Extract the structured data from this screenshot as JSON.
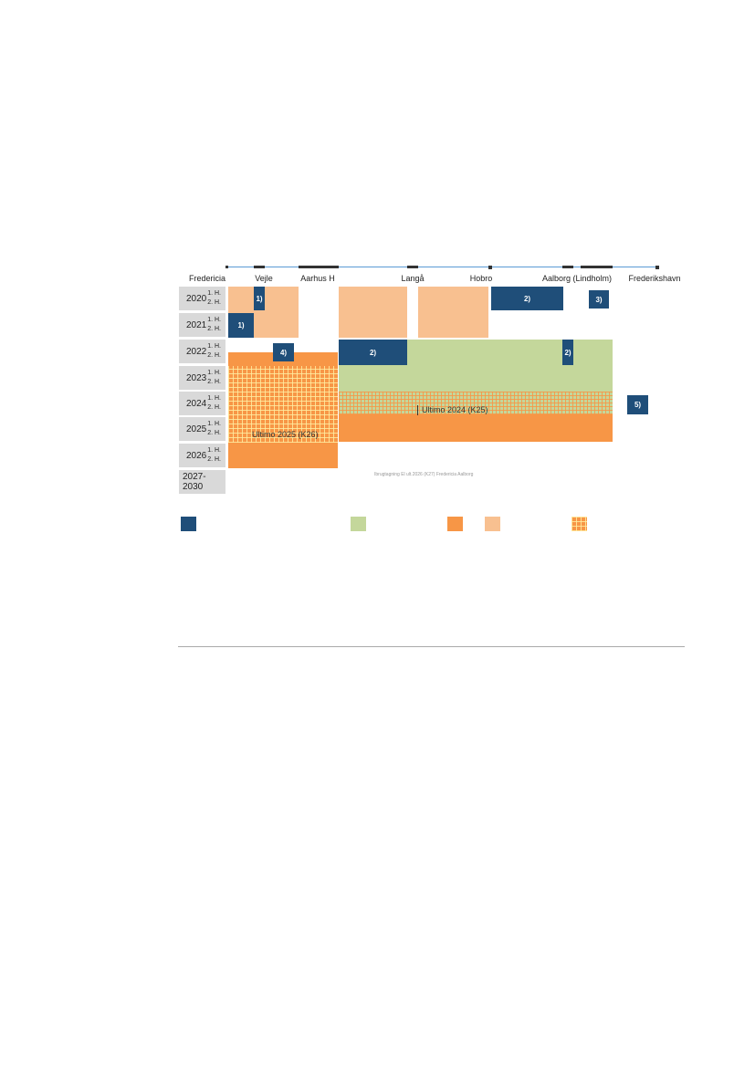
{
  "stations": [
    "Fredericia",
    "Vejle",
    "Aarhus H",
    "Langå",
    "Hobro",
    "Aalborg (Lindholm)",
    "Frederikshavn"
  ],
  "years": [
    "2020",
    "2021",
    "2022",
    "2023",
    "2024",
    "2025",
    "2026",
    "2027-2030"
  ],
  "halves": {
    "first": "1. H.",
    "second": "2. H."
  },
  "notes": {
    "n1a": "1)",
    "n1b": "1)",
    "n2a": "2)",
    "n2b": "2)",
    "n2c": "2)",
    "n3": "3)",
    "n4": "4)",
    "n5": "5)"
  },
  "labels": {
    "ultimo_2024": "Ultimo 2024 (K25)",
    "ultimo_2025": "Ultimo 2025 (K26)",
    "caption": "Ibrugtagning El ult.2026 (K27) Fredericia Aalborg"
  },
  "colors": {
    "navy": "#1f4e79",
    "peach": "#f8c090",
    "orange": "#f79646",
    "green": "#c4d79b",
    "timeline": "#5b9bd5"
  }
}
